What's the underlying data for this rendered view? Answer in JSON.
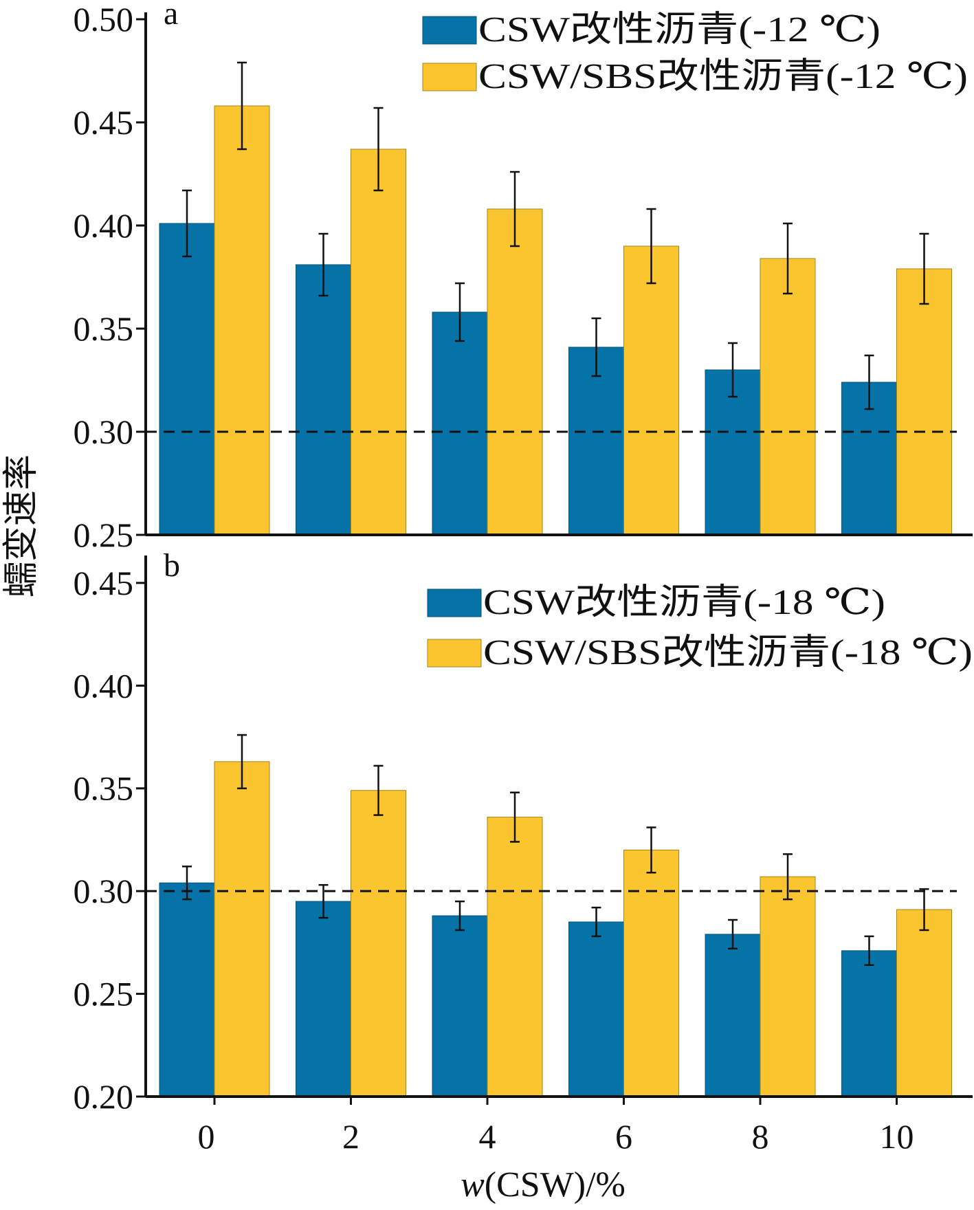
{
  "chart_data": [
    {
      "type": "bar",
      "panel_label": "a",
      "categories": [
        "0",
        "2",
        "4",
        "6",
        "8",
        "10"
      ],
      "series": [
        {
          "name": "CSW改性沥青(-12 ℃)",
          "color": "#0573a8",
          "values": [
            0.401,
            0.381,
            0.358,
            0.341,
            0.33,
            0.324
          ],
          "errors": [
            0.016,
            0.015,
            0.014,
            0.014,
            0.013,
            0.013
          ]
        },
        {
          "name": "CSW/SBS改性沥青(-12 ℃)",
          "color": "#fbc530",
          "values": [
            0.458,
            0.437,
            0.408,
            0.39,
            0.384,
            0.379
          ],
          "errors": [
            0.021,
            0.02,
            0.018,
            0.018,
            0.017,
            0.017
          ]
        }
      ],
      "ylim": [
        0.25,
        0.5
      ],
      "yticks": [
        "0.25",
        "0.30",
        "0.35",
        "0.40",
        "0.45",
        "0.50"
      ],
      "reference_line": 0.3,
      "legend_position": "top-right"
    },
    {
      "type": "bar",
      "panel_label": "b",
      "categories": [
        "0",
        "2",
        "4",
        "6",
        "8",
        "10"
      ],
      "series": [
        {
          "name": "CSW改性沥青(-18 ℃)",
          "color": "#0573a8",
          "values": [
            0.304,
            0.295,
            0.288,
            0.285,
            0.279,
            0.271
          ],
          "errors": [
            0.008,
            0.008,
            0.007,
            0.007,
            0.007,
            0.007
          ]
        },
        {
          "name": "CSW/SBS改性沥青(-18 ℃)",
          "color": "#fbc530",
          "values": [
            0.363,
            0.349,
            0.336,
            0.32,
            0.307,
            0.291
          ],
          "errors": [
            0.013,
            0.012,
            0.012,
            0.011,
            0.011,
            0.01
          ]
        }
      ],
      "ylim": [
        0.2,
        0.46
      ],
      "yticks": [
        "0.20",
        "0.25",
        "0.30",
        "0.35",
        "0.40",
        "0.45"
      ],
      "reference_line": 0.3,
      "legend_position": "top-right"
    }
  ],
  "shared_ylabel": "蠕变速率",
  "shared_xlabel": "w(CSW)/%",
  "xlabel_italic_part": "w",
  "xlabel_rest": "(CSW)/%"
}
